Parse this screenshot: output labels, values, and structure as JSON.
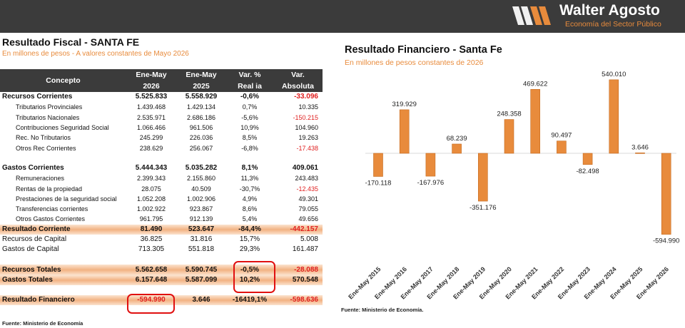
{
  "header": {
    "brand_name": "Walter Agosto",
    "brand_tagline": "Economía del Sector Público",
    "colors": {
      "bar": "#3b3b3b",
      "accent": "#e88b3c"
    }
  },
  "table": {
    "title": "Resultado Fiscal - SANTA FE",
    "subtitle": "En millones de pesos - A valores constantes de Mayo 2026",
    "headers": {
      "concepto": "Concepto",
      "c1a": "Ene-May",
      "c1b": "2026",
      "c2a": "Ene-May",
      "c2b": "2025",
      "c3a": "Var. %",
      "c3b": "Real ia",
      "c4a": "Var.",
      "c4b": "Absoluta"
    },
    "rows": [
      {
        "label": "Recursos Corrientes",
        "v2026": "5.525.833",
        "v2025": "5.558.929",
        "var_pct": "-0,6%",
        "var_abs": "-33.096"
      },
      {
        "label": "Tributarios Provinciales",
        "v2026": "1.439.468",
        "v2025": "1.429.134",
        "var_pct": "0,7%",
        "var_abs": "10.335"
      },
      {
        "label": "Tributarios Nacionales",
        "v2026": "2.535.971",
        "v2025": "2.686.186",
        "var_pct": "-5,6%",
        "var_abs": "-150.215"
      },
      {
        "label": "Contribuciones Seguridad Social",
        "v2026": "1.066.466",
        "v2025": "961.506",
        "var_pct": "10,9%",
        "var_abs": "104.960"
      },
      {
        "label": "Rec. No Tributarios",
        "v2026": "245.299",
        "v2025": "226.036",
        "var_pct": "8,5%",
        "var_abs": "19.263"
      },
      {
        "label": "Otros Rec Corrientes",
        "v2026": "238.629",
        "v2025": "256.067",
        "var_pct": "-6,8%",
        "var_abs": "-17.438"
      },
      {
        "label": "Gastos Corrientes",
        "v2026": "5.444.343",
        "v2025": "5.035.282",
        "var_pct": "8,1%",
        "var_abs": "409.061"
      },
      {
        "label": "Remuneraciones",
        "v2026": "2.399.343",
        "v2025": "2.155.860",
        "var_pct": "11,3%",
        "var_abs": "243.483"
      },
      {
        "label": "Rentas de la propiedad",
        "v2026": "28.075",
        "v2025": "40.509",
        "var_pct": "-30,7%",
        "var_abs": "-12.435"
      },
      {
        "label": "Prestaciones de la seguridad social",
        "v2026": "1.052.208",
        "v2025": "1.002.906",
        "var_pct": "4,9%",
        "var_abs": "49.301"
      },
      {
        "label": "Transferencias corrientes",
        "v2026": "1.002.922",
        "v2025": "923.867",
        "var_pct": "8,6%",
        "var_abs": "79.055"
      },
      {
        "label": "Otros Gastos Corrientes",
        "v2026": "961.795",
        "v2025": "912.139",
        "var_pct": "5,4%",
        "var_abs": "49.656"
      },
      {
        "label": "Resultado Corriente",
        "v2026": "81.490",
        "v2025": "523.647",
        "var_pct": "-84,4%",
        "var_abs": "-442.157"
      },
      {
        "label": "Recursos  de Capital",
        "v2026": "36.825",
        "v2025": "31.816",
        "var_pct": "15,7%",
        "var_abs": "5.008"
      },
      {
        "label": "Gastos de Capital",
        "v2026": "713.305",
        "v2025": "551.818",
        "var_pct": "29,3%",
        "var_abs": "161.487"
      },
      {
        "label": "Recursos Totales",
        "v2026": "5.562.658",
        "v2025": "5.590.745",
        "var_pct": "-0,5%",
        "var_abs": "-28.088"
      },
      {
        "label": "Gastos Totales",
        "v2026": "6.157.648",
        "v2025": "5.587.099",
        "var_pct": "10,2%",
        "var_abs": "570.548"
      },
      {
        "label": "Resultado Financiero",
        "v2026": "-594.990",
        "v2025": "3.646",
        "var_pct": "-16419,1%",
        "var_abs": "-598.636"
      }
    ],
    "source": "Fuente: Ministerio de Economía"
  },
  "chart_data": {
    "type": "bar",
    "title": "Resultado Financiero - Santa Fe",
    "subtitle": "En millones de pesos constantes de 2026",
    "categories": [
      "Ene-May 2015",
      "Ene-May 2016",
      "Ene-May 2017",
      "Ene-May 2018",
      "Ene-May 2019",
      "Ene-May 2020",
      "Ene-May 2021",
      "Ene-May 2022",
      "Ene-May 2023",
      "Ene-May 2024",
      "Ene-May 2025",
      "Ene-May 2026"
    ],
    "values": [
      -170118,
      319929,
      -167976,
      68239,
      -351176,
      248358,
      469622,
      90497,
      -82498,
      540010,
      3646,
      -594990
    ],
    "labels": [
      "-170.118",
      "319.929",
      "-167.976",
      "68.239",
      "-351.176",
      "248.358",
      "469.622",
      "90.497",
      "-82.498",
      "540.010",
      "3.646",
      "-594.990"
    ],
    "bar_color": "#e88b3c",
    "grid": false,
    "source": "Fuente: Ministerio de Economía."
  }
}
